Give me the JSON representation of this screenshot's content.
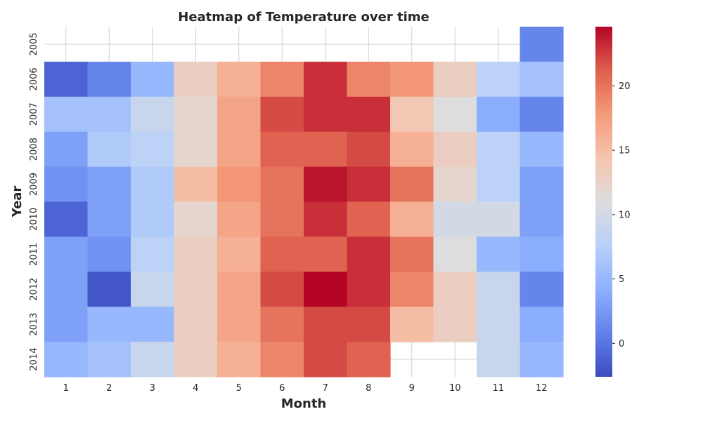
{
  "chart_data": {
    "type": "heatmap",
    "title": "Heatmap of Temperature over time",
    "xlabel": "Month",
    "ylabel": "Year",
    "x": [
      1,
      2,
      3,
      4,
      5,
      6,
      7,
      8,
      9,
      10,
      11,
      12
    ],
    "y": [
      2005,
      2006,
      2007,
      2008,
      2009,
      2010,
      2011,
      2012,
      2013,
      2014
    ],
    "values": [
      [
        null,
        null,
        null,
        null,
        null,
        null,
        null,
        null,
        null,
        null,
        null,
        1
      ],
      [
        -1,
        1,
        5,
        13,
        16,
        19,
        23,
        19,
        18,
        13,
        8,
        6
      ],
      [
        6,
        6,
        9,
        12,
        17,
        22,
        23,
        23,
        14,
        11,
        4,
        1
      ],
      [
        3,
        7,
        8,
        12,
        17,
        21,
        21,
        22,
        16,
        13,
        8,
        5
      ],
      [
        2,
        3,
        7,
        15,
        18,
        20,
        24,
        23,
        20,
        12,
        8,
        3
      ],
      [
        -1,
        3,
        7,
        12,
        17,
        20,
        23,
        21,
        16,
        10,
        10,
        3
      ],
      [
        3,
        2,
        8,
        13,
        16,
        21,
        21,
        23,
        20,
        11,
        5,
        4
      ],
      [
        3,
        -2,
        9,
        13,
        17,
        22,
        25,
        23,
        19,
        13,
        9,
        1
      ],
      [
        3,
        5,
        5,
        13,
        17,
        20,
        22,
        22,
        15,
        13,
        9,
        4
      ],
      [
        5,
        6,
        9,
        13,
        16,
        19,
        22,
        21,
        null,
        null,
        9,
        5
      ]
    ],
    "colorbar": {
      "min": -2.6,
      "max": 24.6,
      "ticks": [
        0,
        5,
        10,
        15,
        20
      ],
      "colormap": "coolwarm"
    },
    "grid": true,
    "colors": {
      "background": "#ffffff",
      "grid": "#d0d0d0",
      "text": "#262626"
    }
  }
}
